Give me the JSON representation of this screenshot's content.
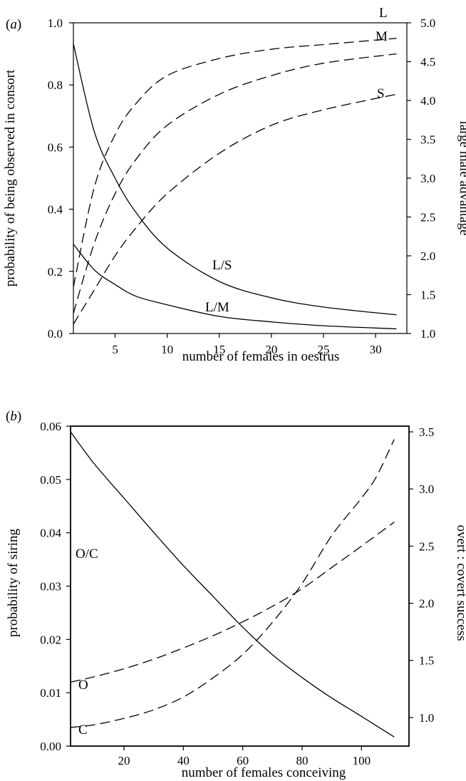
{
  "chart_data": [
    {
      "type": "line",
      "panel": "(a)",
      "panel_letter": "a",
      "xlabel": "number of females in oestrus",
      "ylabel_left": "probability of being observed in consort",
      "ylabel_right": "large male advantage",
      "xlim": [
        1,
        33
      ],
      "ylim_left": [
        0,
        1
      ],
      "ylim_right": [
        1,
        5
      ],
      "xticks": [
        "5",
        "10",
        "15",
        "20",
        "25",
        "30"
      ],
      "yticks_left": [
        "0.0",
        "0.2",
        "0.4",
        "0.6",
        "0.8",
        "1.0"
      ],
      "yticks_right": [
        "1.0",
        "1.5",
        "2.0",
        "2.5",
        "3.0",
        "3.5",
        "4.0",
        "4.5",
        "5.0"
      ],
      "series": [
        {
          "name": "L",
          "axis": "left",
          "style": "dashed",
          "x": [
            1,
            3,
            5,
            7,
            10,
            15,
            20,
            25,
            32
          ],
          "y": [
            0.15,
            0.47,
            0.64,
            0.74,
            0.83,
            0.885,
            0.915,
            0.93,
            0.95
          ]
        },
        {
          "name": "M",
          "axis": "left",
          "style": "dashed",
          "x": [
            1,
            3,
            5,
            7,
            10,
            15,
            20,
            25,
            32
          ],
          "y": [
            0.065,
            0.29,
            0.45,
            0.56,
            0.67,
            0.77,
            0.83,
            0.87,
            0.9
          ]
        },
        {
          "name": "S",
          "axis": "left",
          "style": "dashed",
          "x": [
            1,
            3,
            5,
            7,
            10,
            15,
            20,
            25,
            32
          ],
          "y": [
            0.03,
            0.14,
            0.25,
            0.34,
            0.45,
            0.58,
            0.67,
            0.72,
            0.77
          ]
        },
        {
          "name": "L/S",
          "axis": "right",
          "style": "solid",
          "x": [
            1,
            3,
            5,
            7,
            10,
            15,
            20,
            25,
            32
          ],
          "y": [
            4.73,
            3.6,
            3.0,
            2.56,
            2.1,
            1.67,
            1.46,
            1.34,
            1.24
          ]
        },
        {
          "name": "L/M",
          "axis": "right",
          "style": "solid",
          "x": [
            1,
            3,
            5,
            7,
            10,
            15,
            20,
            25,
            32
          ],
          "y": [
            2.15,
            1.82,
            1.63,
            1.48,
            1.37,
            1.22,
            1.15,
            1.1,
            1.06
          ]
        }
      ]
    },
    {
      "type": "line",
      "panel": "(b)",
      "panel_letter": "b",
      "xlabel": "number of females conceiving",
      "ylabel_left": "probability of siring",
      "ylabel_right": "overt : covert success",
      "xlim": [
        2,
        116
      ],
      "ylim_left": [
        0,
        0.06
      ],
      "ylim_right": [
        0.75,
        3.55
      ],
      "xticks": [
        "20",
        "40",
        "60",
        "80",
        "100"
      ],
      "yticks_left": [
        "0.00",
        "0.01",
        "0.02",
        "0.03",
        "0.04",
        "0.05",
        "0.06"
      ],
      "yticks_right": [
        "1.0",
        "1.5",
        "2.0",
        "2.5",
        "3.0",
        "3.5"
      ],
      "series": [
        {
          "name": "O",
          "axis": "left",
          "style": "dashed",
          "x": [
            2,
            10,
            20,
            30,
            40,
            50,
            60,
            70,
            80,
            90,
            100,
            111
          ],
          "y": [
            0.012,
            0.013,
            0.0145,
            0.0163,
            0.0184,
            0.0207,
            0.0233,
            0.0262,
            0.0295,
            0.0335,
            0.0375,
            0.042
          ]
        },
        {
          "name": "C",
          "axis": "left",
          "style": "dashed",
          "x": [
            2,
            10,
            20,
            30,
            40,
            50,
            60,
            70,
            80,
            90,
            100,
            105,
            111
          ],
          "y": [
            0.0035,
            0.004,
            0.0052,
            0.0068,
            0.0092,
            0.0128,
            0.0172,
            0.0232,
            0.0305,
            0.0395,
            0.0465,
            0.0505,
            0.0575
          ]
        },
        {
          "name": "O/C",
          "axis": "right",
          "style": "solid",
          "x": [
            2,
            10,
            20,
            30,
            40,
            50,
            60,
            70,
            80,
            90,
            100,
            111
          ],
          "y": [
            3.5,
            3.22,
            2.92,
            2.62,
            2.33,
            2.06,
            1.79,
            1.55,
            1.35,
            1.17,
            1.01,
            0.83
          ]
        }
      ]
    }
  ]
}
